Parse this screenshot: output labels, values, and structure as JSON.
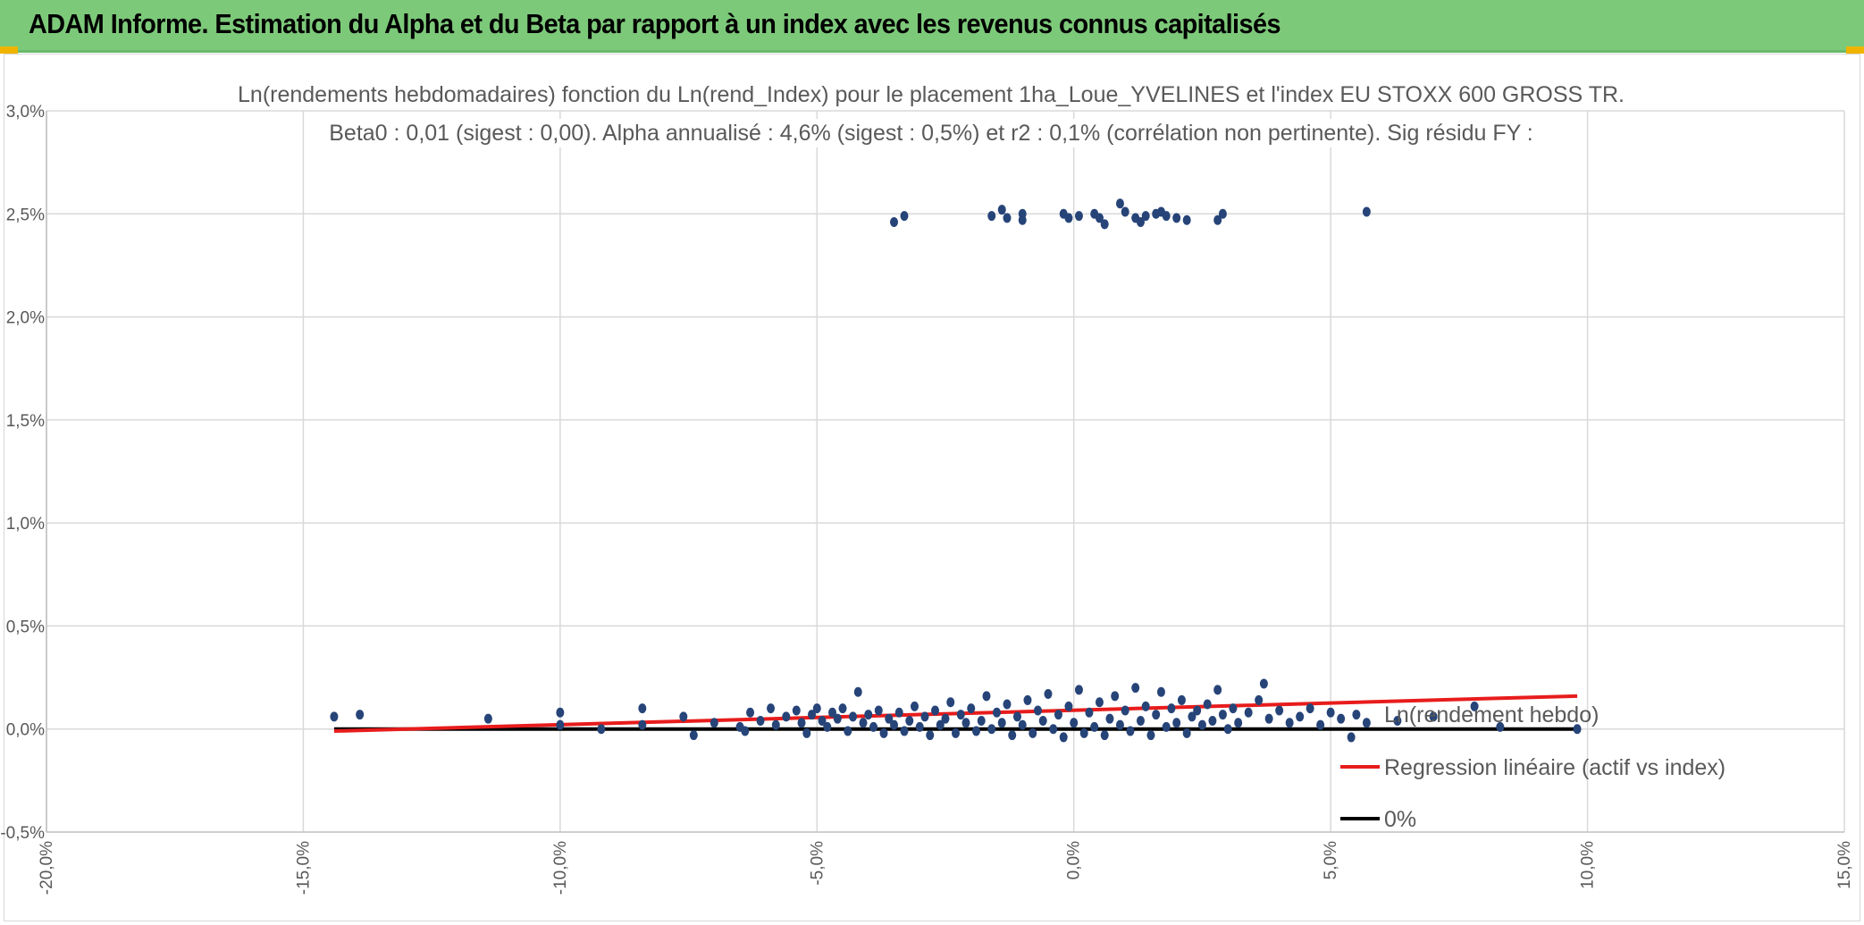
{
  "header": {
    "title": "ADAM Informe. Estimation du Alpha et du Beta par rapport à un index avec les revenus connus capitalisés"
  },
  "colors": {
    "banner": "#7dc97a",
    "points": "#264478",
    "regression": "#e81c1c",
    "zero_line": "#000000",
    "grid": "#d9d9d9",
    "text": "#595959"
  },
  "chart_data": {
    "type": "scatter",
    "title": "Ln(rendements hebdomadaires) fonction du Ln(rend_Index) pour le placement 1ha_Loue_YVELINES et l'index EU STOXX 600 GROSS TR.",
    "subtitle": "Beta0 : 0,01 (sigest : 0,00). Alpha annualisé : 4,6% (sigest : 0,5%) et r2 : 0,1% (corrélation non pertinente). Sig résidu FY :",
    "xlabel": "",
    "ylabel": "",
    "xlim": [
      -0.2,
      0.15
    ],
    "ylim": [
      -0.005,
      0.03
    ],
    "x_ticks": [
      -0.2,
      -0.15,
      -0.1,
      -0.05,
      0.0,
      0.05,
      0.1,
      0.15
    ],
    "x_tick_labels": [
      "-20,0%",
      "-15,0%",
      "-10,0%",
      "-5,0%",
      "0,0%",
      "5,0%",
      "10,0%",
      "15,0%"
    ],
    "y_ticks": [
      -0.005,
      0.0,
      0.005,
      0.01,
      0.015,
      0.02,
      0.025,
      0.03
    ],
    "y_tick_labels": [
      "-0,5%",
      "0,0%",
      "0,5%",
      "1,0%",
      "1,5%",
      "2,0%",
      "2,5%",
      "3,0%"
    ],
    "grid": true,
    "legend_position": "right",
    "series": [
      {
        "name": "Ln(rendement hebdo)",
        "kind": "scatter",
        "points": [
          [
            -0.144,
            0.0006
          ],
          [
            -0.139,
            0.0007
          ],
          [
            -0.114,
            0.0005
          ],
          [
            -0.1,
            0.0008
          ],
          [
            -0.1,
            0.0002
          ],
          [
            -0.092,
            0.0
          ],
          [
            -0.084,
            0.001
          ],
          [
            -0.084,
            0.0002
          ],
          [
            -0.076,
            0.0006
          ],
          [
            -0.074,
            -0.0003
          ],
          [
            -0.07,
            0.0003
          ],
          [
            -0.065,
            0.0001
          ],
          [
            -0.064,
            -0.0001
          ],
          [
            -0.063,
            0.0008
          ],
          [
            -0.061,
            0.0004
          ],
          [
            -0.059,
            0.001
          ],
          [
            -0.058,
            0.0002
          ],
          [
            -0.056,
            0.0006
          ],
          [
            -0.054,
            0.0009
          ],
          [
            -0.053,
            0.0003
          ],
          [
            -0.052,
            -0.0002
          ],
          [
            -0.051,
            0.0007
          ],
          [
            -0.05,
            0.001
          ],
          [
            -0.049,
            0.0004
          ],
          [
            -0.048,
            0.0001
          ],
          [
            -0.047,
            0.0008
          ],
          [
            -0.046,
            0.0005
          ],
          [
            -0.045,
            0.001
          ],
          [
            -0.044,
            -0.0001
          ],
          [
            -0.043,
            0.0006
          ],
          [
            -0.042,
            0.0018
          ],
          [
            -0.041,
            0.0003
          ],
          [
            -0.04,
            0.0007
          ],
          [
            -0.039,
            0.0001
          ],
          [
            -0.038,
            0.0009
          ],
          [
            -0.037,
            -0.0002
          ],
          [
            -0.036,
            0.0005
          ],
          [
            -0.035,
            0.0002
          ],
          [
            -0.034,
            0.0008
          ],
          [
            -0.033,
            -0.0001
          ],
          [
            -0.032,
            0.0004
          ],
          [
            -0.031,
            0.0011
          ],
          [
            -0.03,
            0.0001
          ],
          [
            -0.029,
            0.0006
          ],
          [
            -0.028,
            -0.0003
          ],
          [
            -0.027,
            0.0009
          ],
          [
            -0.026,
            0.0002
          ],
          [
            -0.025,
            0.0005
          ],
          [
            -0.024,
            0.0013
          ],
          [
            -0.023,
            -0.0002
          ],
          [
            -0.022,
            0.0007
          ],
          [
            -0.021,
            0.0003
          ],
          [
            -0.02,
            0.001
          ],
          [
            -0.019,
            -0.0001
          ],
          [
            -0.018,
            0.0004
          ],
          [
            -0.017,
            0.0016
          ],
          [
            -0.016,
            0.0
          ],
          [
            -0.015,
            0.0008
          ],
          [
            -0.014,
            0.0003
          ],
          [
            -0.013,
            0.0012
          ],
          [
            -0.012,
            -0.0003
          ],
          [
            -0.011,
            0.0006
          ],
          [
            -0.01,
            0.0002
          ],
          [
            -0.009,
            0.0014
          ],
          [
            -0.008,
            -0.0002
          ],
          [
            -0.007,
            0.0009
          ],
          [
            -0.006,
            0.0004
          ],
          [
            -0.005,
            0.0017
          ],
          [
            -0.004,
            0.0
          ],
          [
            -0.003,
            0.0007
          ],
          [
            -0.002,
            -0.0004
          ],
          [
            -0.001,
            0.0011
          ],
          [
            0.0,
            0.0003
          ],
          [
            0.001,
            0.0019
          ],
          [
            0.002,
            -0.0002
          ],
          [
            0.003,
            0.0008
          ],
          [
            0.004,
            0.0001
          ],
          [
            0.005,
            0.0013
          ],
          [
            0.006,
            -0.0003
          ],
          [
            0.007,
            0.0005
          ],
          [
            0.008,
            0.0016
          ],
          [
            0.009,
            0.0002
          ],
          [
            0.01,
            0.0009
          ],
          [
            0.011,
            -0.0001
          ],
          [
            0.012,
            0.002
          ],
          [
            0.013,
            0.0004
          ],
          [
            0.014,
            0.0011
          ],
          [
            0.015,
            -0.0003
          ],
          [
            0.016,
            0.0007
          ],
          [
            0.017,
            0.0018
          ],
          [
            0.018,
            0.0001
          ],
          [
            0.019,
            0.001
          ],
          [
            0.02,
            0.0003
          ],
          [
            0.021,
            0.0014
          ],
          [
            0.022,
            -0.0002
          ],
          [
            0.023,
            0.0006
          ],
          [
            0.024,
            0.0009
          ],
          [
            0.025,
            0.0002
          ],
          [
            0.026,
            0.0012
          ],
          [
            0.027,
            0.0004
          ],
          [
            0.028,
            0.0019
          ],
          [
            0.029,
            0.0007
          ],
          [
            0.03,
            0.0
          ],
          [
            0.031,
            0.001
          ],
          [
            0.032,
            0.0003
          ],
          [
            0.034,
            0.0008
          ],
          [
            0.036,
            0.0014
          ],
          [
            0.037,
            0.0022
          ],
          [
            0.038,
            0.0005
          ],
          [
            0.04,
            0.0009
          ],
          [
            0.042,
            0.0003
          ],
          [
            0.044,
            0.0006
          ],
          [
            0.046,
            0.001
          ],
          [
            0.048,
            0.0002
          ],
          [
            0.05,
            0.0008
          ],
          [
            0.052,
            0.0005
          ],
          [
            0.054,
            -0.0004
          ],
          [
            0.055,
            0.0007
          ],
          [
            0.057,
            0.0003
          ],
          [
            0.063,
            0.0004
          ],
          [
            0.07,
            0.0006
          ],
          [
            0.078,
            0.0011
          ],
          [
            0.083,
            0.0001
          ],
          [
            0.098,
            0.0
          ],
          [
            -0.035,
            0.0246
          ],
          [
            -0.033,
            0.0249
          ],
          [
            -0.016,
            0.0249
          ],
          [
            -0.014,
            0.0252
          ],
          [
            -0.013,
            0.0248
          ],
          [
            -0.01,
            0.025
          ],
          [
            -0.01,
            0.0247
          ],
          [
            -0.002,
            0.025
          ],
          [
            -0.001,
            0.0248
          ],
          [
            0.001,
            0.0249
          ],
          [
            0.004,
            0.025
          ],
          [
            0.005,
            0.0248
          ],
          [
            0.006,
            0.0245
          ],
          [
            0.009,
            0.0255
          ],
          [
            0.01,
            0.0251
          ],
          [
            0.012,
            0.0248
          ],
          [
            0.013,
            0.0246
          ],
          [
            0.014,
            0.0249
          ],
          [
            0.016,
            0.025
          ],
          [
            0.017,
            0.0251
          ],
          [
            0.018,
            0.0249
          ],
          [
            0.02,
            0.0248
          ],
          [
            0.022,
            0.0247
          ],
          [
            0.028,
            0.0247
          ],
          [
            0.029,
            0.025
          ],
          [
            0.057,
            0.0251
          ]
        ]
      },
      {
        "name": "Regression linéaire (actif vs index)",
        "kind": "line",
        "points": [
          [
            -0.144,
            -0.0001
          ],
          [
            0.098,
            0.0016
          ]
        ]
      },
      {
        "name": "0%",
        "kind": "line",
        "points": [
          [
            -0.144,
            0.0
          ],
          [
            0.098,
            0.0
          ]
        ]
      }
    ]
  }
}
